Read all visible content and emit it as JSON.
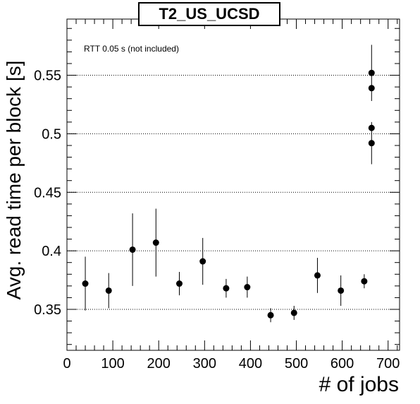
{
  "chart_data": {
    "type": "scatter",
    "title": "T2_US_UCSD",
    "annotation": "RTT 0.05 s (not included)",
    "xlabel": "# of jobs",
    "ylabel": "Avg. read time per block [s]",
    "xlim": [
      0,
      725
    ],
    "ylim": [
      0.315,
      0.598
    ],
    "xticks": [
      0,
      100,
      200,
      300,
      400,
      500,
      600,
      700
    ],
    "xtick_labels": [
      "0",
      "100",
      "200",
      "300",
      "400",
      "500",
      "600",
      "700"
    ],
    "yticks": [
      0.35,
      0.4,
      0.45,
      0.5,
      0.55
    ],
    "ytick_labels": [
      "0.35",
      "0.4",
      "0.45",
      "0.5",
      "0.55"
    ],
    "grid": "horizontal dotted at major y ticks",
    "points": [
      {
        "x": 40,
        "y": 0.372,
        "err": 0.023
      },
      {
        "x": 91,
        "y": 0.366,
        "err": 0.015
      },
      {
        "x": 143,
        "y": 0.401,
        "err": 0.031
      },
      {
        "x": 194,
        "y": 0.407,
        "err": 0.029
      },
      {
        "x": 245,
        "y": 0.372,
        "err": 0.01
      },
      {
        "x": 296,
        "y": 0.391,
        "err": 0.02
      },
      {
        "x": 347,
        "y": 0.368,
        "err": 0.008
      },
      {
        "x": 393,
        "y": 0.369,
        "err": 0.009
      },
      {
        "x": 444,
        "y": 0.345,
        "err": 0.006
      },
      {
        "x": 495,
        "y": 0.347,
        "err": 0.006
      },
      {
        "x": 546,
        "y": 0.379,
        "err": 0.015
      },
      {
        "x": 597,
        "y": 0.366,
        "err": 0.013
      },
      {
        "x": 648,
        "y": 0.374,
        "err": 0.006
      },
      {
        "x": 664,
        "y": 0.552,
        "err": 0.024
      },
      {
        "x": 664,
        "y": 0.539,
        "err": 0.0
      },
      {
        "x": 664,
        "y": 0.505,
        "err": 0.0
      },
      {
        "x": 664,
        "y": 0.492,
        "err": 0.018
      }
    ],
    "marker_color": "#000000"
  }
}
